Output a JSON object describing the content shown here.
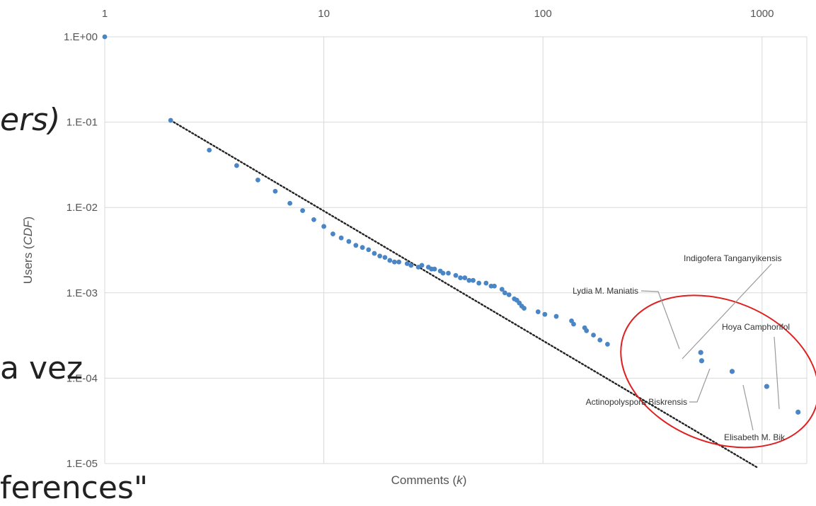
{
  "slide": {
    "line1": "ers)",
    "line2": "a vez",
    "line3": "ferences\""
  },
  "chart_data": {
    "type": "scatter",
    "x_scale": "log",
    "y_scale": "log",
    "xlabel": "Comments (k)",
    "ylabel": "Users (CDF)",
    "xlim": [
      1,
      1600
    ],
    "ylim": [
      1e-05,
      1
    ],
    "x_ticks": [
      "1",
      "10",
      "100",
      "1000"
    ],
    "y_ticks": [
      "1.E+00",
      "1.E-01",
      "1.E-02",
      "1.E-03",
      "1.E-04",
      "1.E-05"
    ],
    "grid": true,
    "marker_color": "#4a86c5",
    "fit_line": {
      "style": "dotted",
      "color": "#222222",
      "from": [
        2,
        0.105
      ],
      "to": [
        950,
        9e-06
      ]
    },
    "points": [
      [
        1,
        1.0
      ],
      [
        2,
        0.105
      ],
      [
        3,
        0.047
      ],
      [
        4,
        0.031
      ],
      [
        5,
        0.021
      ],
      [
        6,
        0.0155
      ],
      [
        7,
        0.0112
      ],
      [
        8,
        0.0092
      ],
      [
        9,
        0.0072
      ],
      [
        10,
        0.006
      ],
      [
        11,
        0.0049
      ],
      [
        12,
        0.0044
      ],
      [
        13,
        0.004
      ],
      [
        14,
        0.0036
      ],
      [
        15,
        0.0034
      ],
      [
        16,
        0.0032
      ],
      [
        17,
        0.0029
      ],
      [
        18,
        0.0027
      ],
      [
        19,
        0.0026
      ],
      [
        20,
        0.0024
      ],
      [
        21,
        0.0023
      ],
      [
        22,
        0.0023
      ],
      [
        24,
        0.0022
      ],
      [
        25,
        0.0021
      ],
      [
        27,
        0.002
      ],
      [
        28,
        0.0021
      ],
      [
        30,
        0.002
      ],
      [
        31,
        0.0019
      ],
      [
        32,
        0.0019
      ],
      [
        34,
        0.0018
      ],
      [
        35,
        0.0017
      ],
      [
        37,
        0.0017
      ],
      [
        40,
        0.0016
      ],
      [
        42,
        0.0015
      ],
      [
        44,
        0.0015
      ],
      [
        46,
        0.0014
      ],
      [
        48,
        0.0014
      ],
      [
        51,
        0.0013
      ],
      [
        55,
        0.0013
      ],
      [
        58,
        0.0012
      ],
      [
        60,
        0.0012
      ],
      [
        65,
        0.0011
      ],
      [
        67,
        0.001
      ],
      [
        70,
        0.00095
      ],
      [
        74,
        0.00085
      ],
      [
        76,
        0.00082
      ],
      [
        78,
        0.00076
      ],
      [
        80,
        0.0007
      ],
      [
        82,
        0.00066
      ],
      [
        95,
        0.0006
      ],
      [
        102,
        0.00056
      ],
      [
        115,
        0.00053
      ],
      [
        135,
        0.00047
      ],
      [
        138,
        0.00043
      ],
      [
        155,
        0.00039
      ],
      [
        158,
        0.00036
      ],
      [
        170,
        0.00032
      ],
      [
        182,
        0.00028
      ],
      [
        197,
        0.00025
      ]
    ],
    "outliers": [
      {
        "x": 525,
        "y": 0.0002,
        "label": "Indigofera Tanganyikensis"
      },
      {
        "x": 530,
        "y": 0.00016,
        "label": "Lydia M. Maniatis"
      },
      {
        "x": 730,
        "y": 0.00012,
        "label": "Actinopolyspora Biskrensis"
      },
      {
        "x": 1050,
        "y": 8e-05,
        "label": "Elisabeth M. Bik"
      },
      {
        "x": 1460,
        "y": 4e-05,
        "label": "Hoya Camphorifol"
      }
    ],
    "highlight": {
      "shape": "ellipse",
      "color": "#e02020",
      "around": "outliers"
    }
  }
}
